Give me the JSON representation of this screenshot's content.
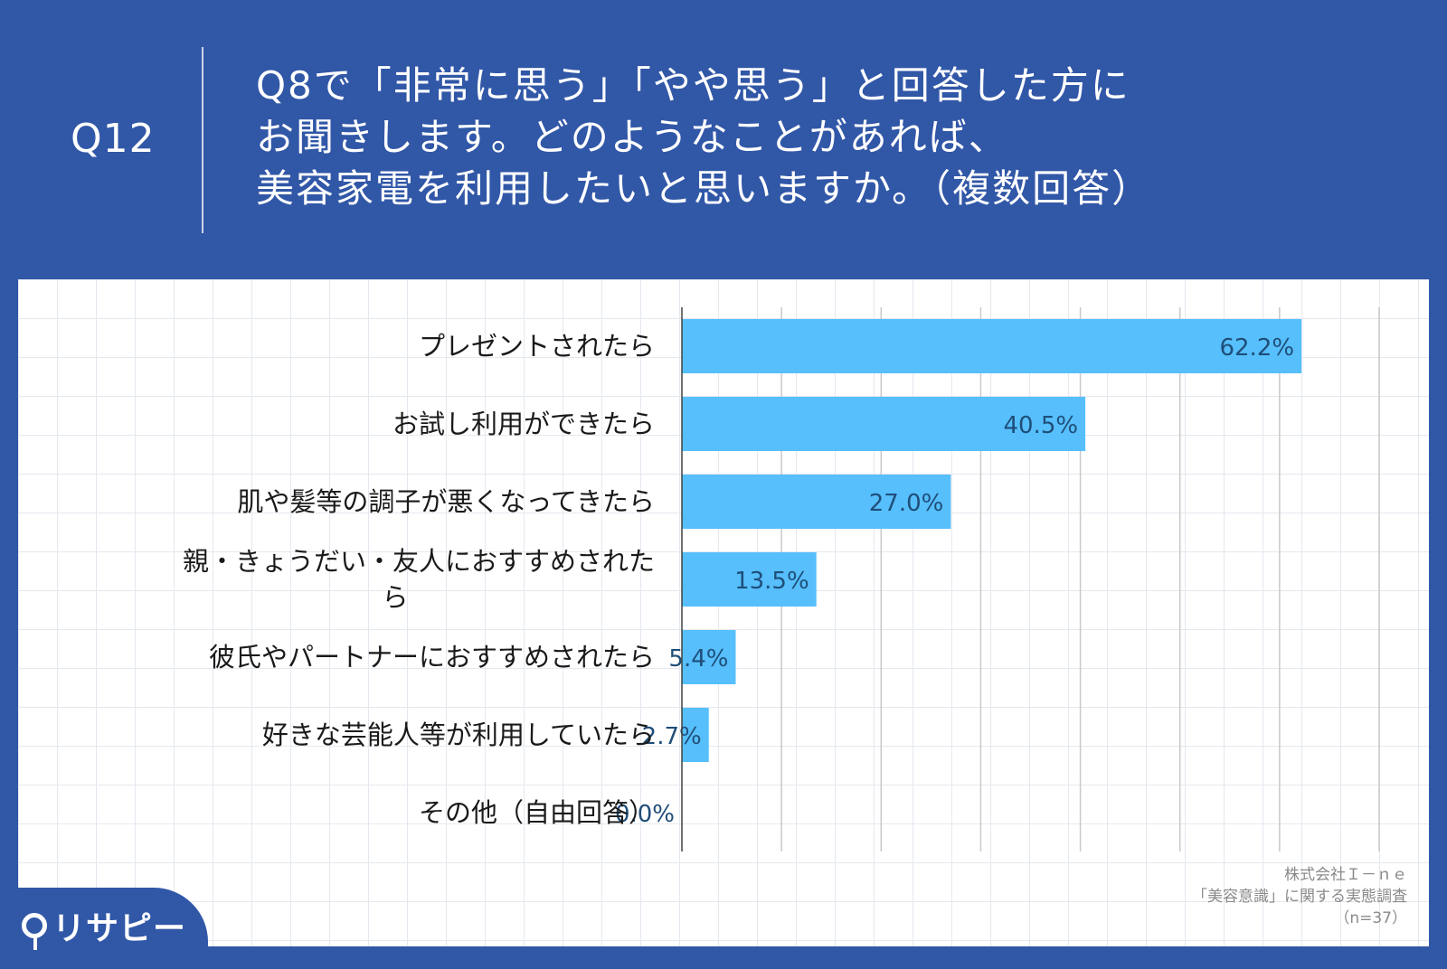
{
  "header": {
    "qnum": "Q12",
    "question_lines": [
      "Q8で「非常に思う」「やや思う」と回答した方に",
      "お聞きします。どのようなことがあれば、",
      "美容家電を利用したいと思いますか。（複数回答）"
    ]
  },
  "chart_data": {
    "type": "bar",
    "orientation": "horizontal",
    "categories": [
      "プレゼントされたら",
      "お試し利用ができたら",
      "肌や髪等の調子が悪くなってきたら",
      "親・きょうだい・友人におすすめされたら",
      "彼氏やパートナーにおすすめされたら",
      "好きな芸能人等が利用していたら",
      "その他（自由回答）"
    ],
    "category_label_lines": [
      [
        "プレゼントされたら"
      ],
      [
        "お試し利用ができたら"
      ],
      [
        "肌や髪等の調子が悪くなってきたら"
      ],
      [
        "親・きょうだい・友人におすすめされた",
        "ら"
      ],
      [
        "彼氏やパートナーにおすすめされたら"
      ],
      [
        "好きな芸能人等が利用していたら"
      ],
      [
        "その他（自由回答）"
      ]
    ],
    "values": [
      62.2,
      40.5,
      27.0,
      13.5,
      5.4,
      2.7,
      0.0
    ],
    "value_labels": [
      "62.2%",
      "40.5%",
      "27.0%",
      "13.5%",
      "5.4%",
      "2.7%",
      "0.0%"
    ],
    "xlim": [
      0,
      70
    ],
    "grid": true,
    "bar_color": "#56bffc"
  },
  "source": {
    "lines": [
      "株式会社Ｉ－ｎｅ",
      "「美容意識」に関する実態調査",
      "（n=37）"
    ]
  },
  "logo": {
    "text": "リサピー",
    "icon": "pin-icon"
  }
}
